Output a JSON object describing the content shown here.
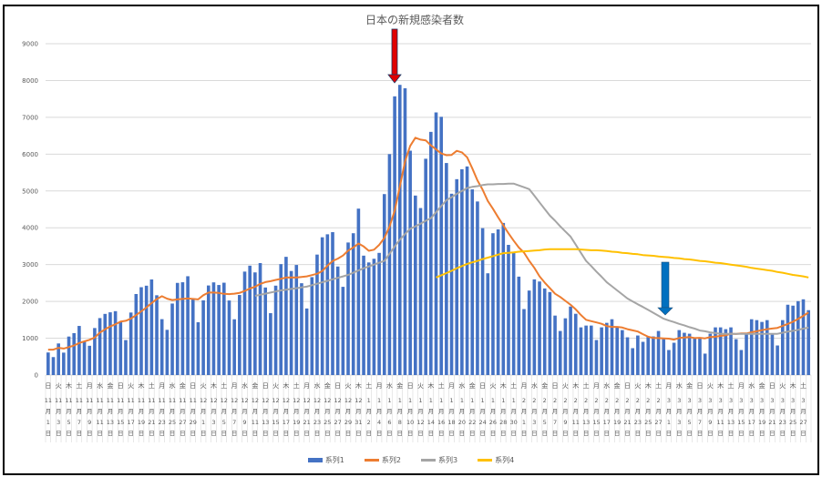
{
  "chart_data": {
    "type": "bar",
    "title": "日本の新規感染者数",
    "xlabel": "",
    "ylabel": "",
    "ylim": [
      0,
      9000
    ],
    "y_ticks": [
      0,
      1000,
      2000,
      3000,
      4000,
      5000,
      6000,
      7000,
      8000,
      9000
    ],
    "grid": true,
    "legend_position": "bottom",
    "colors": {
      "系列1": "#4472C4",
      "系列2": "#ED7D31",
      "系列3": "#A5A5A5",
      "系列4": "#FFC000",
      "arrow_red": "#E00000",
      "arrow_blue": "#0070C0"
    },
    "x_tick_weekdays": [
      "日",
      "火",
      "木",
      "土",
      "月",
      "水",
      "金",
      "日",
      "火",
      "木",
      "土",
      "月",
      "水",
      "金",
      "日",
      "火",
      "木",
      "土",
      "月",
      "水",
      "金",
      "日",
      "火",
      "木",
      "土",
      "月",
      "水",
      "金",
      "日",
      "火",
      "木",
      "土",
      "月",
      "水",
      "金",
      "日",
      "火",
      "木",
      "土",
      "月",
      "水",
      "金",
      "日",
      "火",
      "木",
      "土",
      "月",
      "水",
      "金",
      "日",
      "火",
      "木",
      "土",
      "月",
      "水",
      "金",
      "日",
      "火",
      "木",
      "土",
      "月",
      "水",
      "金",
      "日",
      "火",
      "木",
      "土",
      "月",
      "水",
      "金",
      "日",
      "火",
      "木",
      "土"
    ],
    "x_tick_labels": [
      "11月1日",
      "11月3日",
      "11月5日",
      "11月7日",
      "11月9日",
      "11月11日",
      "11月13日",
      "11月15日",
      "11月17日",
      "11月19日",
      "11月21日",
      "11月23日",
      "11月25日",
      "11月27日",
      "11月29日",
      "12月1日",
      "12月3日",
      "12月5日",
      "12月7日",
      "12月9日",
      "12月11日",
      "12月13日",
      "12月15日",
      "12月17日",
      "12月19日",
      "12月21日",
      "12月23日",
      "12月25日",
      "12月27日",
      "12月29日",
      "12月31日",
      "1月2日",
      "1月4日",
      "1月6日",
      "1月8日",
      "1月10日",
      "1月12日",
      "1月14日",
      "1月16日",
      "1月18日",
      "1月20日",
      "1月22日",
      "1月24日",
      "1月26日",
      "1月28日",
      "1月30日",
      "2月1日",
      "2月3日",
      "2月5日",
      "2月7日",
      "2月9日",
      "2月11日",
      "2月13日",
      "2月15日",
      "2月17日",
      "2月19日",
      "2月21日",
      "2月23日",
      "2月25日",
      "2月27日",
      "3月1日",
      "3月3日",
      "3月5日",
      "3月7日",
      "3月9日",
      "3月11日",
      "3月13日",
      "3月15日",
      "3月17日",
      "3月19日",
      "3月21日",
      "3月23日",
      "3月25日",
      "3月27日"
    ],
    "series": [
      {
        "name": "系列1",
        "type": "bar",
        "values": [
          613,
          488,
          858,
          609,
          1046,
          1139,
          1334,
          926,
          795,
          1277,
          1547,
          1661,
          1704,
          1735,
          1439,
          950,
          1698,
          2201,
          2386,
          2427,
          2596,
          2167,
          1518,
          1228,
          1942,
          2503,
          2520,
          2684,
          2068,
          1434,
          2029,
          2433,
          2517,
          2446,
          2508,
          2025,
          1515,
          2175,
          2810,
          2971,
          2788,
          3041,
          2378,
          1681,
          2428,
          3013,
          3211,
          2826,
          2990,
          2494,
          1808,
          2659,
          3272,
          3742,
          3823,
          3881,
          2948,
          2396,
          3600,
          3852,
          4520,
          3243,
          3058,
          3158,
          3318,
          4915,
          6001,
          7570,
          7882,
          7790,
          6094,
          4875,
          4536,
          5875,
          6605,
          7133,
          7014,
          5759,
          4925,
          5320,
          5590,
          5666,
          5043,
          4714,
          3990,
          2764,
          3852,
          3957,
          4131,
          3536,
          3342,
          2673,
          1792,
          2295,
          2598,
          2541,
          2352,
          2254,
          1615,
          1197,
          1541,
          1861,
          1664,
          1295,
          1344,
          1344,
          951,
          1295,
          1418,
          1516,
          1295,
          1221,
          1025,
          730,
          1074,
          902,
          1049,
          1049,
          1197,
          975,
          680,
          877,
          1221,
          1148,
          1123,
          1000,
          1025,
          582,
          1123,
          1295,
          1295,
          1246,
          1295,
          975,
          680,
          1123,
          1516,
          1492,
          1443,
          1492,
          1098,
          803,
          1492,
          1910,
          1885,
          2008,
          2057,
          1762
        ]
      },
      {
        "name": "系列2",
        "type": "line",
        "values": [
          690,
          690,
          740,
          720,
          760,
          800,
          870,
          914,
          958,
          1018,
          1152,
          1240,
          1321,
          1378,
          1451,
          1473,
          1533,
          1627,
          1730,
          1834,
          1957,
          2061,
          2142,
          2075,
          2038,
          2054,
          2068,
          2080,
          2066,
          2054,
          2169,
          2239,
          2241,
          2230,
          2205,
          2199,
          2210,
          2231,
          2285,
          2350,
          2399,
          2475,
          2525,
          2549,
          2585,
          2614,
          2649,
          2654,
          2647,
          2663,
          2681,
          2714,
          2751,
          2827,
          2970,
          3097,
          3162,
          3246,
          3380,
          3463,
          3574,
          3491,
          3374,
          3404,
          3536,
          3723,
          4030,
          4466,
          5129,
          5805,
          6224,
          6447,
          6393,
          6375,
          6237,
          6130,
          6019,
          5971,
          5978,
          6090,
          6049,
          5915,
          5617,
          5288,
          5035,
          4727,
          4517,
          4284,
          4064,
          3849,
          3653,
          3465,
          3326,
          3104,
          2910,
          2682,
          2513,
          2358,
          2207,
          2122,
          2014,
          1909,
          1783,
          1632,
          1502,
          1464,
          1429,
          1393,
          1330,
          1309,
          1309,
          1291,
          1246,
          1214,
          1183,
          1109,
          1042,
          1007,
          1004,
          997,
          989,
          961,
          1007,
          1021,
          1032,
          1003,
          1011,
          997,
          1032,
          1042,
          1063,
          1081,
          1123,
          1116,
          1130,
          1130,
          1161,
          1190,
          1218,
          1246,
          1263,
          1281,
          1334,
          1390,
          1446,
          1527,
          1608,
          1702
        ]
      },
      {
        "name": "系列3",
        "type": "line",
        "values": [
          null,
          null,
          null,
          null,
          null,
          null,
          null,
          null,
          null,
          null,
          null,
          null,
          null,
          null,
          null,
          null,
          null,
          null,
          null,
          null,
          null,
          null,
          null,
          null,
          null,
          null,
          null,
          null,
          null,
          null,
          null,
          null,
          null,
          null,
          null,
          null,
          null,
          null,
          null,
          null,
          2150,
          2180,
          2210,
          2240,
          2270,
          2300,
          2320,
          2340,
          2360,
          2380,
          2400,
          2440,
          2480,
          2520,
          2560,
          2600,
          2640,
          2680,
          2720,
          2780,
          2840,
          2900,
          2950,
          3000,
          3050,
          3100,
          3290,
          3490,
          3680,
          3830,
          3970,
          4040,
          4110,
          4190,
          4260,
          4420,
          4590,
          4750,
          4830,
          4920,
          5000,
          5080,
          5110,
          5130,
          5160,
          5180,
          5180,
          5190,
          5190,
          5200,
          5200,
          5150,
          5100,
          5050,
          4870,
          4690,
          4510,
          4330,
          4190,
          4040,
          3900,
          3760,
          3540,
          3320,
          3100,
          2960,
          2810,
          2670,
          2520,
          2410,
          2300,
          2190,
          2080,
          2000,
          1920,
          1850,
          1770,
          1690,
          1610,
          1530,
          1480,
          1440,
          1390,
          1350,
          1300,
          1260,
          1210,
          1190,
          1160,
          1140,
          1120,
          1120,
          1120,
          1120,
          1120,
          1120,
          1120,
          1120,
          1120,
          1120,
          1120,
          1120,
          1150,
          1180,
          1200,
          1230,
          1260,
          1290
        ]
      },
      {
        "name": "系列4",
        "type": "line",
        "values": [
          null,
          null,
          null,
          null,
          null,
          null,
          null,
          null,
          null,
          null,
          null,
          null,
          null,
          null,
          null,
          null,
          null,
          null,
          null,
          null,
          null,
          null,
          null,
          null,
          null,
          null,
          null,
          null,
          null,
          null,
          null,
          null,
          null,
          null,
          null,
          null,
          null,
          null,
          null,
          null,
          null,
          null,
          null,
          null,
          null,
          null,
          null,
          null,
          null,
          null,
          null,
          null,
          null,
          null,
          null,
          null,
          null,
          null,
          null,
          null,
          null,
          null,
          null,
          null,
          null,
          null,
          null,
          null,
          null,
          null,
          null,
          null,
          null,
          null,
          null,
          2650,
          2710,
          2770,
          2830,
          2900,
          2960,
          3020,
          3060,
          3100,
          3150,
          3190,
          3230,
          3270,
          3310,
          3320,
          3330,
          3350,
          3360,
          3370,
          3380,
          3390,
          3410,
          3420,
          3420,
          3420,
          3420,
          3420,
          3420,
          3410,
          3400,
          3390,
          3390,
          3380,
          3370,
          3350,
          3340,
          3320,
          3310,
          3290,
          3280,
          3260,
          3250,
          3240,
          3220,
          3210,
          3200,
          3180,
          3170,
          3150,
          3140,
          3120,
          3100,
          3090,
          3070,
          3050,
          3040,
          3020,
          3000,
          2980,
          2960,
          2940,
          2910,
          2890,
          2870,
          2850,
          2830,
          2800,
          2780,
          2750,
          2720,
          2700,
          2680,
          2650
        ]
      }
    ]
  },
  "legend": {
    "s1": "系列1",
    "s2": "系列2",
    "s3": "系列3",
    "s4": "系列4"
  }
}
